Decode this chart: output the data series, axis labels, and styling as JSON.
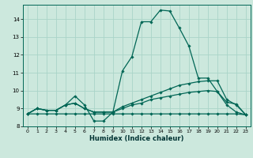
{
  "title": "",
  "xlabel": "Humidex (Indice chaleur)",
  "ylabel": "",
  "background_color": "#cce8dd",
  "line_color": "#006655",
  "grid_color": "#aad4c8",
  "xlim": [
    -0.5,
    23.5
  ],
  "ylim": [
    8.0,
    14.8
  ],
  "yticks": [
    8,
    9,
    10,
    11,
    12,
    13,
    14
  ],
  "xticks": [
    0,
    1,
    2,
    3,
    4,
    5,
    6,
    7,
    8,
    9,
    10,
    11,
    12,
    13,
    14,
    15,
    16,
    17,
    18,
    19,
    20,
    21,
    22,
    23
  ],
  "lines": [
    {
      "x": [
        0,
        1,
        2,
        3,
        4,
        5,
        6,
        7,
        8,
        9,
        10,
        11,
        12,
        13,
        14,
        15,
        16,
        17,
        18,
        19,
        20,
        21,
        22,
        23
      ],
      "y": [
        8.7,
        9.0,
        8.9,
        8.9,
        9.2,
        9.7,
        9.2,
        8.3,
        8.3,
        8.8,
        11.1,
        11.9,
        13.85,
        13.85,
        14.5,
        14.45,
        13.5,
        12.5,
        10.7,
        10.7,
        9.95,
        9.35,
        9.25,
        8.65
      ]
    },
    {
      "x": [
        0,
        1,
        2,
        3,
        4,
        5,
        6,
        7,
        8,
        9,
        10,
        11,
        12,
        13,
        14,
        15,
        16,
        17,
        18,
        19,
        20,
        21,
        22,
        23
      ],
      "y": [
        8.7,
        9.0,
        8.9,
        8.9,
        9.2,
        9.3,
        9.0,
        8.8,
        8.8,
        8.8,
        9.1,
        9.3,
        9.5,
        9.7,
        9.9,
        10.1,
        10.3,
        10.4,
        10.5,
        10.55,
        10.55,
        9.5,
        9.2,
        8.65
      ]
    },
    {
      "x": [
        0,
        1,
        2,
        3,
        4,
        5,
        6,
        7,
        8,
        9,
        10,
        11,
        12,
        13,
        14,
        15,
        16,
        17,
        18,
        19,
        20,
        21,
        22,
        23
      ],
      "y": [
        8.7,
        9.0,
        8.9,
        8.9,
        9.2,
        9.3,
        9.0,
        8.8,
        8.8,
        8.8,
        9.0,
        9.2,
        9.3,
        9.5,
        9.6,
        9.7,
        9.8,
        9.9,
        9.95,
        10.0,
        9.95,
        9.2,
        8.8,
        8.65
      ]
    },
    {
      "x": [
        0,
        1,
        2,
        3,
        4,
        5,
        6,
        7,
        8,
        9,
        10,
        11,
        12,
        13,
        14,
        15,
        16,
        17,
        18,
        19,
        20,
        21,
        22,
        23
      ],
      "y": [
        8.7,
        8.7,
        8.7,
        8.7,
        8.7,
        8.7,
        8.7,
        8.7,
        8.7,
        8.7,
        8.7,
        8.7,
        8.7,
        8.7,
        8.7,
        8.7,
        8.7,
        8.7,
        8.7,
        8.7,
        8.7,
        8.7,
        8.7,
        8.65
      ]
    }
  ]
}
